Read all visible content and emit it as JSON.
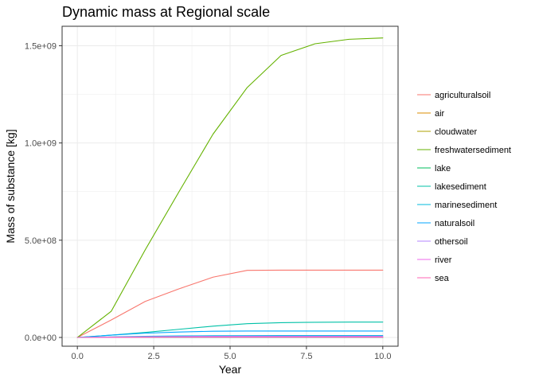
{
  "chart_data": {
    "type": "line",
    "title": "Dynamic mass at Regional scale",
    "xlabel": "Year",
    "ylabel": "Mass of substance [kg]",
    "xlim": [
      -0.5,
      10.5
    ],
    "ylim": [
      -45000000,
      1600000000
    ],
    "x_ticks": [
      0,
      2.5,
      5,
      7.5,
      10
    ],
    "x_tick_labels": [
      "0.0",
      "2.5",
      "5.0",
      "7.5",
      "10.0"
    ],
    "y_ticks": [
      0,
      500000000,
      1000000000,
      1500000000
    ],
    "y_tick_labels": [
      "0.0e+00",
      "5.0e+08",
      "1.0e+09",
      "1.5e+09"
    ],
    "grid": true,
    "legend_position": "right",
    "series": [
      {
        "name": "agriculturalsoil",
        "color": "#F8766D",
        "x": [
          0,
          1.11,
          2.22,
          3.33,
          4.44,
          5.56,
          6.67,
          7.78,
          8.89,
          10
        ],
        "y": [
          0,
          90000000,
          185000000,
          250000000,
          310000000,
          345000000,
          346000000,
          346000000,
          346000000,
          346000000
        ]
      },
      {
        "name": "air",
        "color": "#DB8E00",
        "x": [
          0,
          1.11,
          2.22,
          3.33,
          4.44,
          5.56,
          6.67,
          7.78,
          8.89,
          10
        ],
        "y": [
          0,
          300000,
          600000,
          800000,
          1000000,
          1100000,
          1100000,
          1100000,
          1100000,
          1100000
        ]
      },
      {
        "name": "cloudwater",
        "color": "#AEA200",
        "x": [
          0,
          1.11,
          2.22,
          3.33,
          4.44,
          5.56,
          6.67,
          7.78,
          8.89,
          10
        ],
        "y": [
          0,
          1000,
          2000,
          3000,
          4000,
          4500,
          4500,
          4500,
          4500,
          4500
        ]
      },
      {
        "name": "freshwatersediment",
        "color": "#64B200",
        "x": [
          0,
          1.11,
          2.22,
          3.33,
          4.44,
          5.56,
          6.67,
          7.78,
          8.89,
          10
        ],
        "y": [
          0,
          135000000,
          450000000,
          750000000,
          1045000000,
          1285000000,
          1450000000,
          1510000000,
          1533000000,
          1540000000
        ]
      },
      {
        "name": "lake",
        "color": "#00BD5C",
        "x": [
          0,
          1.11,
          2.22,
          3.33,
          4.44,
          5.56,
          6.67,
          7.78,
          8.89,
          10
        ],
        "y": [
          0,
          200000,
          400000,
          600000,
          800000,
          900000,
          900000,
          900000,
          900000,
          900000
        ]
      },
      {
        "name": "lakesediment",
        "color": "#00C1A7",
        "x": [
          0,
          1.11,
          2.22,
          3.33,
          4.44,
          5.56,
          6.67,
          7.78,
          8.89,
          10
        ],
        "y": [
          0,
          12000000,
          26000000,
          42000000,
          58000000,
          71000000,
          76000000,
          78000000,
          79000000,
          79000000
        ]
      },
      {
        "name": "marinesediment",
        "color": "#00BADE",
        "x": [
          0,
          1.11,
          2.22,
          3.33,
          4.44,
          5.56,
          6.67,
          7.78,
          8.89,
          10
        ],
        "y": [
          0,
          3000000,
          6000000,
          8000000,
          9000000,
          9500000,
          9800000,
          10000000,
          10000000,
          10000000
        ]
      },
      {
        "name": "naturalsoil",
        "color": "#00A6FF",
        "x": [
          0,
          1.11,
          2.22,
          3.33,
          4.44,
          5.56,
          6.67,
          7.78,
          8.89,
          10
        ],
        "y": [
          0,
          12000000,
          22000000,
          28000000,
          32000000,
          33000000,
          33000000,
          33000000,
          33000000,
          33000000
        ]
      },
      {
        "name": "othersoil",
        "color": "#B385FF",
        "x": [
          0,
          1.11,
          2.22,
          3.33,
          4.44,
          5.56,
          6.67,
          7.78,
          8.89,
          10
        ],
        "y": [
          0,
          2000000,
          4000000,
          5000000,
          6000000,
          6500000,
          6500000,
          6500000,
          6500000,
          6500000
        ]
      },
      {
        "name": "river",
        "color": "#EF67EB",
        "x": [
          0,
          1.11,
          2.22,
          3.33,
          4.44,
          5.56,
          6.67,
          7.78,
          8.89,
          10
        ],
        "y": [
          0,
          500000,
          1000000,
          1200000,
          1300000,
          1400000,
          1400000,
          1400000,
          1400000,
          1400000
        ]
      },
      {
        "name": "sea",
        "color": "#FF63B6",
        "x": [
          0,
          1.11,
          2.22,
          3.33,
          4.44,
          5.56,
          6.67,
          7.78,
          8.89,
          10
        ],
        "y": [
          0,
          800000,
          1500000,
          2000000,
          2300000,
          2500000,
          2500000,
          2500000,
          2500000,
          2500000
        ]
      }
    ]
  }
}
